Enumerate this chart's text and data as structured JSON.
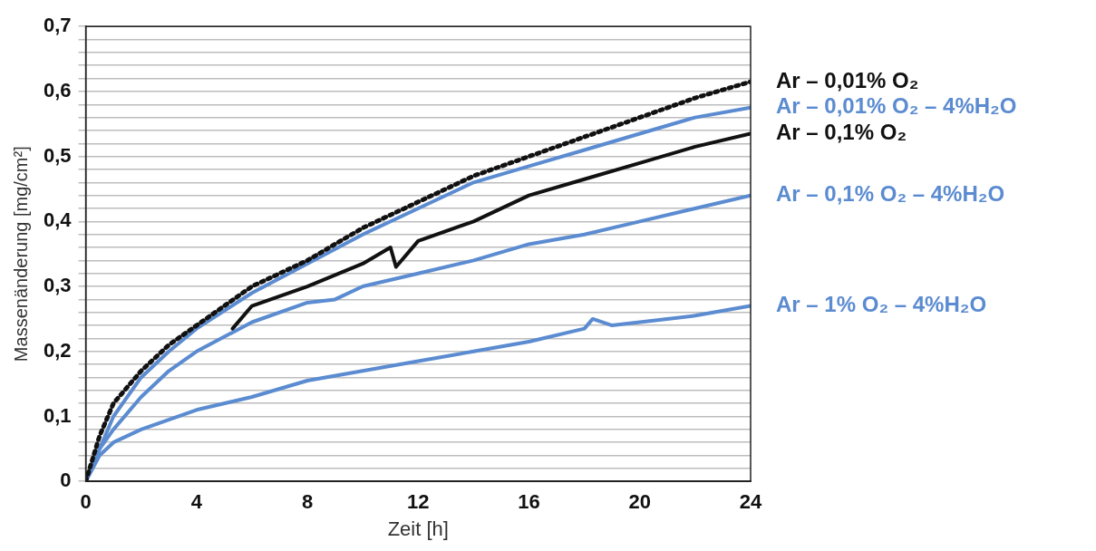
{
  "chart_data": {
    "type": "line",
    "xlabel": "Zeit [h]",
    "ylabel": "Massenänderung [mg/cm²]",
    "xlim": [
      0,
      24
    ],
    "xticks": [
      0,
      4,
      8,
      12,
      16,
      20,
      24
    ],
    "ylim": [
      0,
      0.7
    ],
    "yticks": [
      {
        "value": 0,
        "label": "0"
      },
      {
        "value": 0.02,
        "label": null
      },
      {
        "value": 0.04,
        "label": null
      },
      {
        "value": 0.06,
        "label": null
      },
      {
        "value": 0.08,
        "label": null
      },
      {
        "value": 0.1,
        "label": "0,1"
      },
      {
        "value": 0.12,
        "label": null
      },
      {
        "value": 0.14,
        "label": null
      },
      {
        "value": 0.16,
        "label": null
      },
      {
        "value": 0.18,
        "label": null
      },
      {
        "value": 0.2,
        "label": "0,2"
      },
      {
        "value": 0.22,
        "label": null
      },
      {
        "value": 0.24,
        "label": null
      },
      {
        "value": 0.26,
        "label": null
      },
      {
        "value": 0.28,
        "label": null
      },
      {
        "value": 0.3,
        "label": "0,3"
      },
      {
        "value": 0.32,
        "label": null
      },
      {
        "value": 0.34,
        "label": null
      },
      {
        "value": 0.36,
        "label": null
      },
      {
        "value": 0.38,
        "label": null
      },
      {
        "value": 0.4,
        "label": "0,4"
      },
      {
        "value": 0.42,
        "label": null
      },
      {
        "value": 0.44,
        "label": null
      },
      {
        "value": 0.46,
        "label": null
      },
      {
        "value": 0.48,
        "label": null
      },
      {
        "value": 0.5,
        "label": "0,5"
      },
      {
        "value": 0.52,
        "label": null
      },
      {
        "value": 0.54,
        "label": null
      },
      {
        "value": 0.56,
        "label": null
      },
      {
        "value": 0.58,
        "label": null
      },
      {
        "value": 0.6,
        "label": "0,6"
      },
      {
        "value": 0.62,
        "label": null
      },
      {
        "value": 0.64,
        "label": null
      },
      {
        "value": 0.66,
        "label": null
      },
      {
        "value": 0.68,
        "label": null
      },
      {
        "value": 0.7,
        "label": "0,7"
      }
    ],
    "grid": "y",
    "legend": false,
    "marker": "none",
    "series": [
      {
        "name": "Ar – 0,01% O₂",
        "color": "#111111",
        "line_style": "dotted",
        "x": [
          0,
          0.5,
          1,
          2,
          3,
          4,
          5,
          6,
          8,
          10,
          12,
          14,
          16,
          18,
          20,
          22,
          24
        ],
        "values": [
          0,
          0.07,
          0.12,
          0.17,
          0.21,
          0.24,
          0.27,
          0.3,
          0.34,
          0.39,
          0.43,
          0.47,
          0.5,
          0.53,
          0.56,
          0.59,
          0.615
        ]
      },
      {
        "name": "Ar – 0,01% O₂ – 4%H₂O",
        "color": "#5b8bd0",
        "x": [
          0,
          0.5,
          1,
          2,
          3,
          4,
          6,
          8,
          10,
          12,
          14,
          16,
          18,
          20,
          22,
          24
        ],
        "values": [
          0,
          0.05,
          0.1,
          0.16,
          0.2,
          0.235,
          0.29,
          0.335,
          0.38,
          0.42,
          0.46,
          0.485,
          0.51,
          0.535,
          0.56,
          0.575
        ]
      },
      {
        "name": "Ar – 0,1% O₂",
        "color": "#111111",
        "x": [
          5.3,
          6,
          8,
          10,
          11,
          11.2,
          12,
          14,
          16,
          18,
          20,
          22,
          24
        ],
        "values": [
          0.235,
          0.27,
          0.3,
          0.335,
          0.36,
          0.33,
          0.37,
          0.4,
          0.44,
          0.465,
          0.49,
          0.515,
          0.535
        ]
      },
      {
        "name": "Ar – 0,1% O₂ – 4%H₂O",
        "color": "#5b8bd0",
        "x": [
          0,
          0.5,
          1,
          2,
          3,
          4,
          6,
          8,
          9,
          10,
          12,
          14,
          16,
          18,
          20,
          22,
          24
        ],
        "values": [
          0,
          0.05,
          0.08,
          0.13,
          0.17,
          0.2,
          0.245,
          0.275,
          0.28,
          0.3,
          0.32,
          0.34,
          0.365,
          0.38,
          0.4,
          0.42,
          0.44
        ]
      },
      {
        "name": "Ar – 1% O₂ – 4%H₂O",
        "color": "#5b8bd0",
        "x": [
          0,
          0.5,
          1,
          2,
          3,
          4,
          6,
          8,
          10,
          12,
          14,
          16,
          18,
          18.3,
          19,
          20,
          22,
          24
        ],
        "values": [
          0,
          0.04,
          0.06,
          0.08,
          0.095,
          0.11,
          0.13,
          0.155,
          0.17,
          0.185,
          0.2,
          0.215,
          0.235,
          0.25,
          0.24,
          0.245,
          0.255,
          0.27
        ]
      }
    ]
  }
}
